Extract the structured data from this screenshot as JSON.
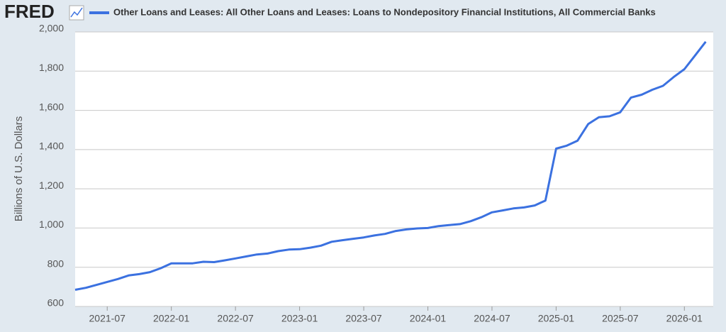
{
  "logo": "FRED",
  "chart_data": {
    "type": "line",
    "title": "Other Loans and Leases: All Other Loans and Leases: Loans to Nondepository Financial Institutions, All Commercial Banks",
    "y_label": "Billions of U.S. Dollars",
    "x": [
      "2021-04",
      "2021-05",
      "2021-06",
      "2021-07",
      "2021-08",
      "2021-09",
      "2021-10",
      "2021-11",
      "2021-12",
      "2022-01",
      "2022-02",
      "2022-03",
      "2022-04",
      "2022-05",
      "2022-06",
      "2022-07",
      "2022-08",
      "2022-09",
      "2022-10",
      "2022-11",
      "2022-12",
      "2023-01",
      "2023-02",
      "2023-03",
      "2023-04",
      "2023-05",
      "2023-06",
      "2023-07",
      "2023-08",
      "2023-09",
      "2023-10",
      "2023-11",
      "2023-12",
      "2024-01",
      "2024-02",
      "2024-03",
      "2024-04",
      "2024-05",
      "2024-06",
      "2024-07",
      "2024-08",
      "2024-09",
      "2024-10",
      "2024-11",
      "2024-12",
      "2025-01",
      "2025-02",
      "2025-03",
      "2025-04",
      "2025-05",
      "2025-06",
      "2025-07",
      "2025-08",
      "2025-09",
      "2025-10",
      "2025-11",
      "2025-12",
      "2026-01",
      "2026-02",
      "2026-03"
    ],
    "series": [
      {
        "name": "Other Loans and Leases: All Other Loans and Leases: Loans to Nondepository Financial Institutions, All Commercial Banks",
        "color": "#3b71e0",
        "values": [
          685,
          695,
          710,
          725,
          740,
          758,
          765,
          775,
          795,
          820,
          820,
          820,
          828,
          826,
          835,
          845,
          855,
          865,
          870,
          882,
          890,
          892,
          900,
          910,
          930,
          938,
          945,
          952,
          962,
          970,
          985,
          993,
          998,
          1000,
          1010,
          1015,
          1020,
          1035,
          1055,
          1080,
          1090,
          1100,
          1105,
          1115,
          1140,
          1405,
          1420,
          1445,
          1530,
          1565,
          1570,
          1590,
          1665,
          1680,
          1705,
          1725,
          1770,
          1810,
          1880,
          1950
        ]
      }
    ],
    "xlim": [
      "2021-04",
      "2026-03"
    ],
    "xticks": [
      "2021-07",
      "2022-01",
      "2022-07",
      "2023-01",
      "2023-07",
      "2024-01",
      "2024-07",
      "2025-01",
      "2025-07",
      "2026-01"
    ],
    "ylim": [
      600,
      2000
    ],
    "yticks": [
      {
        "value": 600,
        "label": "600"
      },
      {
        "value": 800,
        "label": "800"
      },
      {
        "value": 1000,
        "label": "1,000"
      },
      {
        "value": 1200,
        "label": "1,200"
      },
      {
        "value": 1400,
        "label": "1,400"
      },
      {
        "value": 1600,
        "label": "1,600"
      },
      {
        "value": 1800,
        "label": "1,800"
      },
      {
        "value": 2000,
        "label": "2,000"
      }
    ],
    "grid": true
  }
}
